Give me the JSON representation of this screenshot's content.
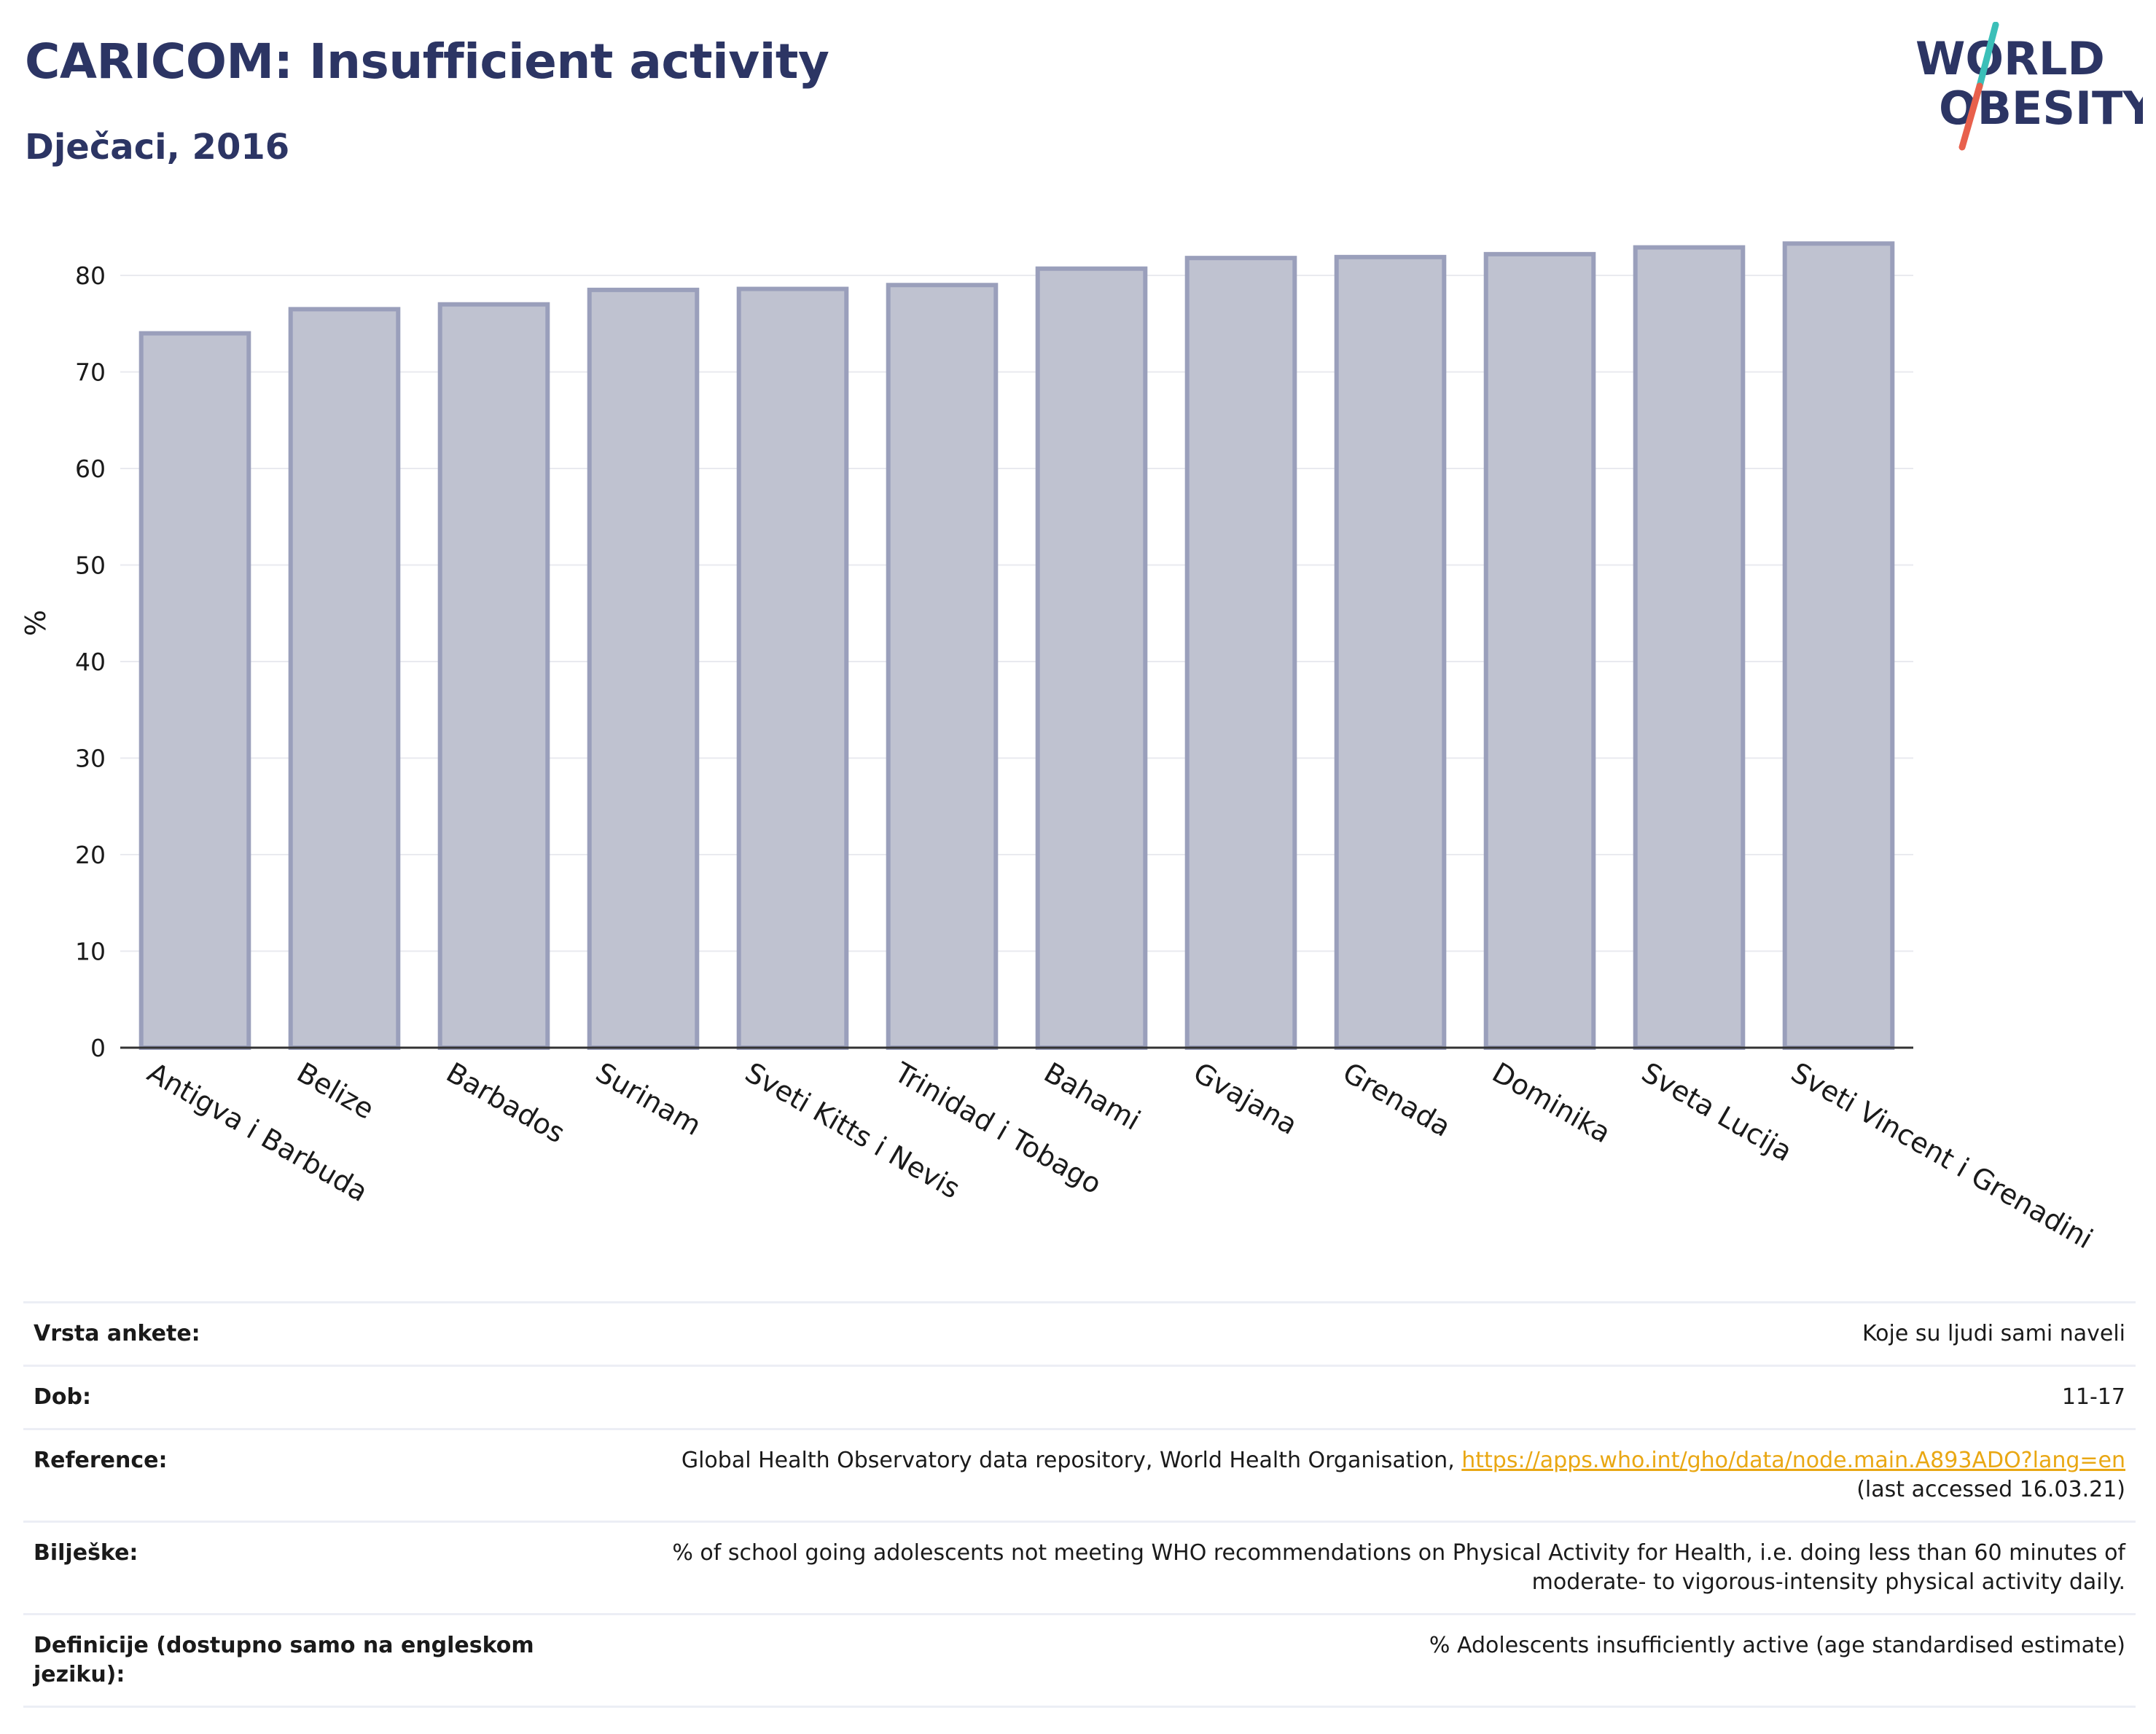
{
  "header": {
    "title": "CARICOM: Insufficient activity",
    "subtitle": "Dječaci, 2016"
  },
  "logo": {
    "line1": "WORLD",
    "line2": "OBESITY",
    "colors": {
      "text": "#2c3564",
      "slash_top": "#3bbfb8",
      "slash_bottom": "#e8604c"
    }
  },
  "chart_data": {
    "type": "bar",
    "title": "",
    "xlabel": "",
    "ylabel": "%",
    "ylim": [
      0,
      85
    ],
    "yticks": [
      0,
      10,
      20,
      30,
      40,
      50,
      60,
      70,
      80
    ],
    "grid": true,
    "categories": [
      "Antigva i Barbuda",
      "Belize",
      "Barbados",
      "Surinam",
      "Sveti Kitts i Nevis",
      "Trinidad i Tobago",
      "Bahami",
      "Gvajana",
      "Grenada",
      "Dominika",
      "Sveta Lucija",
      "Sveti Vincent i Grenadini"
    ],
    "values": [
      74.0,
      76.5,
      77.0,
      78.5,
      78.6,
      79.0,
      80.7,
      81.8,
      81.9,
      82.2,
      82.9,
      83.3
    ],
    "bar_fill": "#bfc2d0",
    "bar_stroke": "#9a9fbb"
  },
  "meta": {
    "survey_label": "Vrsta ankete:",
    "survey_value": "Koje su ljudi sami naveli",
    "age_label": "Dob:",
    "age_value": "11-17",
    "reference_label": "Reference:",
    "reference_text": "Global Health Observatory data repository, World Health Organisation, ",
    "reference_link": "https://apps.who.int/gho/data/node.main.A893ADO?lang=en",
    "reference_accessed": "(last accessed 16.03.21)",
    "notes_label": "Bilješke:",
    "notes_line1": "% of school going adolescents not meeting WHO recommendations on Physical Activity for Health, i.e. doing less than 60 minutes of",
    "notes_line2": "moderate- to vigorous-intensity physical activity daily.",
    "definition_label": "Definicije (dostupno samo na engleskom jeziku):",
    "definition_value": "% Adolescents insufficiently active (age standardised estimate)"
  }
}
